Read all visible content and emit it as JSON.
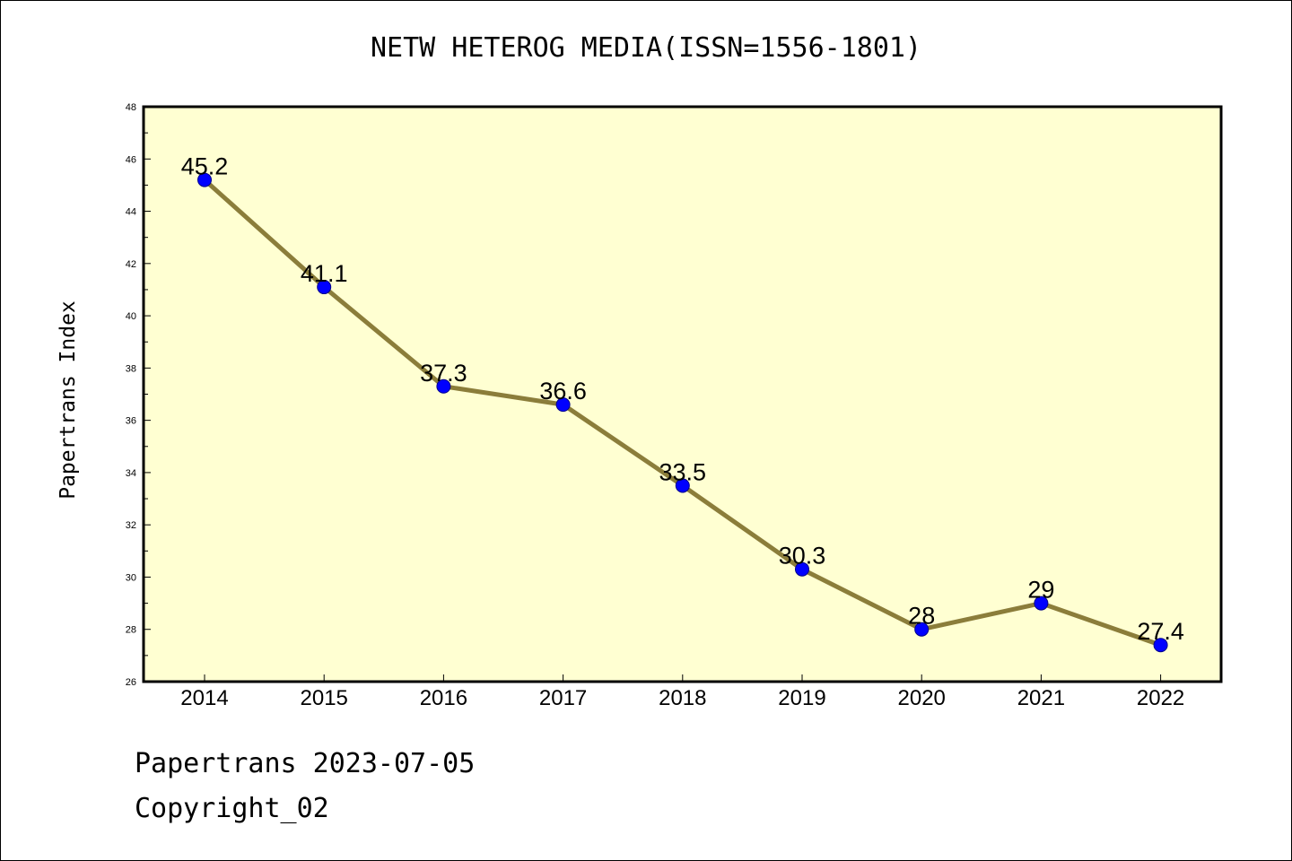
{
  "chart_data": {
    "type": "line",
    "title": "NETW HETEROG MEDIA(ISSN=1556-1801)",
    "xlabel": "",
    "ylabel": "Papertrans Index",
    "x": [
      "2014",
      "2015",
      "2016",
      "2017",
      "2018",
      "2019",
      "2020",
      "2021",
      "2022"
    ],
    "series": [
      {
        "values": [
          45.2,
          41.1,
          37.3,
          36.6,
          33.5,
          30.3,
          28,
          29,
          27.4
        ],
        "data_labels": [
          "45.2",
          "41.1",
          "37.3",
          "36.6",
          "33.5",
          "30.3",
          "28",
          "29",
          "27.4"
        ],
        "line_color": "#8b7d3a",
        "marker_color": "#0000ff"
      }
    ],
    "ylim": [
      26,
      48
    ],
    "yticks": [
      "26",
      "28",
      "30",
      "32",
      "34",
      "36",
      "38",
      "40",
      "42",
      "44",
      "46",
      "48"
    ],
    "plot_background": "#ffffd2",
    "grid": false,
    "legend": "none"
  },
  "footer": {
    "line1": "Papertrans 2023-07-05",
    "line2": "Copyright_02"
  }
}
